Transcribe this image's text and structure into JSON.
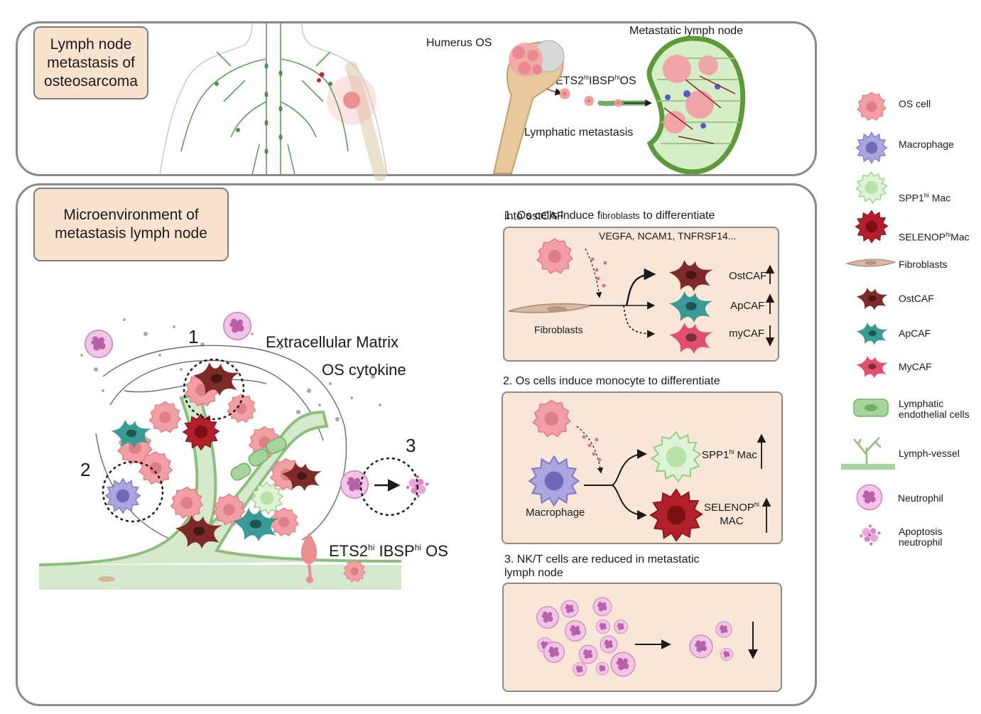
{
  "top_panel": {
    "title": "Lymph node\nmetastasis of\nosteosarcoma",
    "humerus_label": "Humerus OS",
    "metastatic_node_label": "Metastatic lymph node",
    "ets2_label": {
      "a": "ETS2",
      "sup1": "hi",
      "b": "IBSP",
      "sup2": "hi",
      "c": "OS"
    },
    "lymphatic_metastasis_label": "Lymphatic metastasis"
  },
  "bottom_panel": {
    "title": "Microenvironment of\nmetastasis lymph node",
    "ecm_label": "Extracellular Matrix",
    "cytokine_label": "OS cytokine",
    "marker_1": "1",
    "marker_2": "2",
    "marker_3": "3",
    "ets2_label": {
      "a": "ETS2",
      "sup1": "hi",
      "b": " IBSP",
      "sup2": "hi",
      "c": " OS"
    }
  },
  "section1": {
    "title_a": "1. Os cells induce f",
    "title_small": "ibroblasts",
    "title_b": "  to differentiate",
    "title_line2": "into ostCAF",
    "factors": "VEGFA, NCAM1, TNFRSF14...",
    "fibroblasts": "Fibroblasts",
    "ostcaf": "OstCAF",
    "apcaf": "ApCAF",
    "mycaf": "myCAF"
  },
  "section2": {
    "title": "2. Os cells induce monocyte to differentiate",
    "macrophage": "Macrophage",
    "spp1": {
      "a": "SPP1",
      "sup": "hi",
      "b": " Mac"
    },
    "selenop": {
      "a": "SELENOP",
      "sup": "hi",
      "line2": "MAC"
    }
  },
  "section3": {
    "title": "3. NK/T cells are reduced in  metastatic\nlymph node"
  },
  "legend": [
    {
      "label": "OS cell",
      "icon": "os-cell-icon"
    },
    {
      "label": "Macrophage",
      "icon": "macrophage-icon"
    },
    {
      "label": "SPP1",
      "sup": "hi",
      "label_b": " Mac",
      "icon": "spp1-mac-icon"
    },
    {
      "label": "SELENOP",
      "sup": "hi",
      "label_b": "Mac",
      "icon": "selenop-mac-icon"
    },
    {
      "label": "Fibroblasts",
      "icon": "fibroblast-icon"
    },
    {
      "label": "OstCAF",
      "icon": "ostcaf-icon"
    },
    {
      "label": "ApCAF",
      "icon": "apcaf-icon"
    },
    {
      "label": "MyCAF",
      "icon": "mycaf-icon"
    },
    {
      "label": "Lymphatic\nendothelial cells",
      "icon": "lymphatic-endothelial-icon"
    },
    {
      "label": "Lymph-vessel",
      "icon": "lymph-vessel-icon"
    },
    {
      "label": "Neutrophil",
      "icon": "neutrophil-icon"
    },
    {
      "label": "Apoptosis\nneutrophil",
      "icon": "apoptosis-neutrophil-icon"
    }
  ],
  "colors": {
    "os_cell": "#f2a0a4",
    "macrophage": "#a9a6e0",
    "spp1_mac": "#cdebc4",
    "selenop_mac": "#b3202a",
    "ostcaf": "#7d2a28",
    "apcaf": "#3a9a96",
    "mycaf": "#e0506e",
    "lymphatic": "#a6d49a",
    "neutrophil": "#e6a8d8",
    "panel_fill": "#fae6d6"
  }
}
